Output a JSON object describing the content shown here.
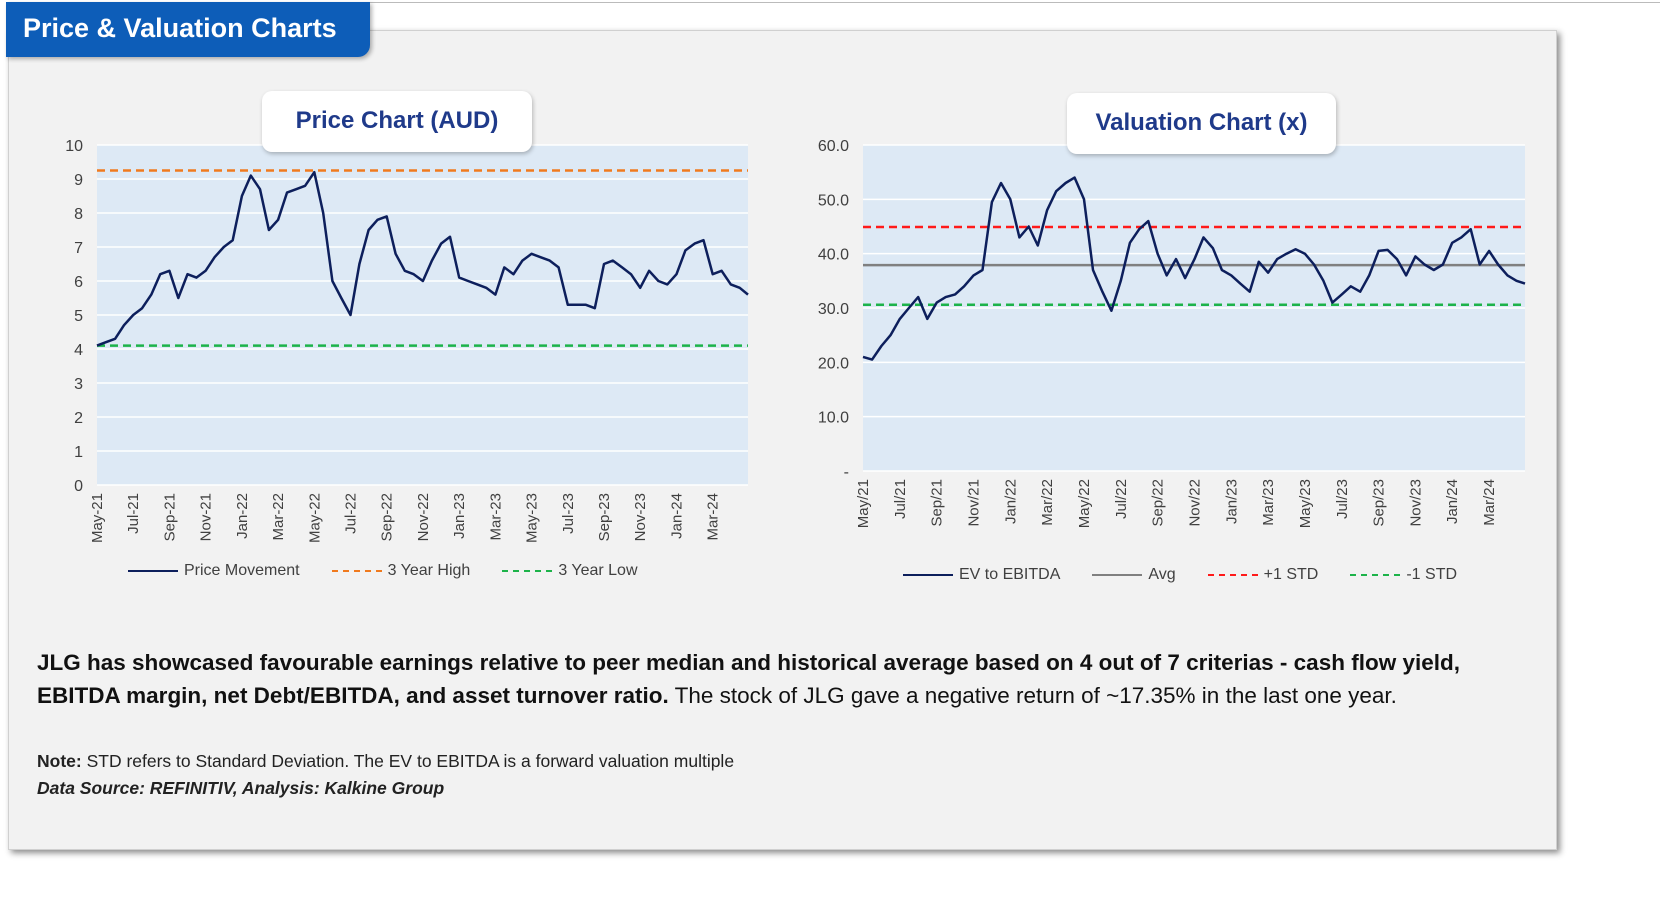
{
  "header": {
    "title": "Price & Valuation Charts"
  },
  "colors": {
    "header_bg": "#0d5db8",
    "plot_bg": "#dde9f5",
    "line": "#0d1f5c",
    "high": "#f07a1e",
    "low": "#1db34a",
    "avg": "#808080",
    "plus_std": "#ff1a1a",
    "minus_std": "#1db34a"
  },
  "chart_data": [
    {
      "type": "line",
      "title": "Price Chart (AUD)",
      "ylim": [
        0,
        10
      ],
      "y_ticks": [
        "0",
        "1",
        "2",
        "3",
        "4",
        "5",
        "6",
        "7",
        "8",
        "9",
        "10"
      ],
      "x_tick_labels": [
        "May-21",
        "Jul-21",
        "Sep-21",
        "Nov-21",
        "Jan-22",
        "Mar-22",
        "May-22",
        "Jul-22",
        "Sep-22",
        "Nov-22",
        "Jan-23",
        "Mar-23",
        "May-23",
        "Jul-23",
        "Sep-23",
        "Nov-23",
        "Jan-24",
        "Mar-24"
      ],
      "xlim": [
        "2021-05-01",
        "2024-04-30"
      ],
      "grid": true,
      "legend_position": "bottom",
      "reference_lines": [
        {
          "name": "3 Year High",
          "value": 9.25,
          "style": "dashed",
          "color": "#f07a1e"
        },
        {
          "name": "3 Year Low",
          "value": 4.1,
          "style": "dashed",
          "color": "#1db34a"
        }
      ],
      "series": [
        {
          "name": "Price Movement",
          "color": "#0d1f5c",
          "x": [
            "2021-05-01",
            "2021-05-16",
            "2021-06-01",
            "2021-06-16",
            "2021-07-01",
            "2021-07-16",
            "2021-08-01",
            "2021-08-16",
            "2021-09-01",
            "2021-09-16",
            "2021-10-01",
            "2021-10-16",
            "2021-11-01",
            "2021-11-16",
            "2021-12-01",
            "2021-12-16",
            "2022-01-01",
            "2022-01-16",
            "2022-02-01",
            "2022-02-16",
            "2022-03-01",
            "2022-03-16",
            "2022-04-01",
            "2022-04-16",
            "2022-05-01",
            "2022-05-16",
            "2022-06-01",
            "2022-06-16",
            "2022-07-01",
            "2022-07-16",
            "2022-08-01",
            "2022-08-16",
            "2022-09-01",
            "2022-09-16",
            "2022-10-01",
            "2022-10-16",
            "2022-11-01",
            "2022-11-16",
            "2022-12-01",
            "2022-12-16",
            "2023-01-01",
            "2023-01-16",
            "2023-02-01",
            "2023-02-16",
            "2023-03-01",
            "2023-03-16",
            "2023-04-01",
            "2023-04-16",
            "2023-05-01",
            "2023-05-16",
            "2023-06-01",
            "2023-06-16",
            "2023-07-01",
            "2023-07-16",
            "2023-08-01",
            "2023-08-16",
            "2023-09-01",
            "2023-09-16",
            "2023-10-01",
            "2023-10-16",
            "2023-11-01",
            "2023-11-16",
            "2023-12-01",
            "2023-12-16",
            "2024-01-01",
            "2024-01-16",
            "2024-02-01",
            "2024-02-16",
            "2024-03-01",
            "2024-03-16",
            "2024-04-01",
            "2024-04-16",
            "2024-04-30"
          ],
          "y": [
            4.1,
            4.2,
            4.3,
            4.7,
            5.0,
            5.2,
            5.6,
            6.2,
            6.3,
            5.5,
            6.2,
            6.1,
            6.3,
            6.7,
            7.0,
            7.2,
            8.5,
            9.1,
            8.7,
            7.5,
            7.8,
            8.6,
            8.7,
            8.8,
            9.2,
            8.0,
            6.0,
            5.5,
            5.0,
            6.5,
            7.5,
            7.8,
            7.9,
            6.8,
            6.3,
            6.2,
            6.0,
            6.6,
            7.1,
            7.3,
            6.1,
            6.0,
            5.9,
            5.8,
            5.6,
            6.4,
            6.2,
            6.6,
            6.8,
            6.7,
            6.6,
            6.4,
            5.3,
            5.3,
            5.3,
            5.2,
            6.5,
            6.6,
            6.4,
            6.2,
            5.8,
            6.3,
            6.0,
            5.9,
            6.2,
            6.9,
            7.1,
            7.2,
            6.2,
            6.3,
            5.9,
            5.8,
            5.6
          ]
        }
      ]
    },
    {
      "type": "line",
      "title": "Valuation Chart (x)",
      "ylim": [
        0,
        60
      ],
      "y_ticks": [
        "-",
        "10.0",
        "20.0",
        "30.0",
        "40.0",
        "50.0",
        "60.0"
      ],
      "x_tick_labels": [
        "May/21",
        "Jul/21",
        "Sep/21",
        "Nov/21",
        "Jan/22",
        "Mar/22",
        "May/22",
        "Jul/22",
        "Sep/22",
        "Nov/22",
        "Jan/23",
        "Mar/23",
        "May/23",
        "Jul/23",
        "Sep/23",
        "Nov/23",
        "Jan/24",
        "Mar/24"
      ],
      "xlim": [
        "2021-05-01",
        "2024-04-30"
      ],
      "grid": true,
      "legend_position": "bottom",
      "reference_lines": [
        {
          "name": "Avg",
          "value": 37.9,
          "style": "solid",
          "color": "#808080"
        },
        {
          "name": "+1 STD",
          "value": 44.9,
          "style": "dashed",
          "color": "#ff1a1a"
        },
        {
          "name": "-1 STD",
          "value": 30.6,
          "style": "dashed",
          "color": "#1db34a"
        }
      ],
      "series": [
        {
          "name": "EV to EBITDA",
          "color": "#0d1f5c",
          "x": [
            "2021-05-01",
            "2021-05-16",
            "2021-06-01",
            "2021-06-16",
            "2021-07-01",
            "2021-07-16",
            "2021-08-01",
            "2021-08-16",
            "2021-09-01",
            "2021-09-16",
            "2021-10-01",
            "2021-10-16",
            "2021-11-01",
            "2021-11-16",
            "2021-12-01",
            "2021-12-16",
            "2022-01-01",
            "2022-01-16",
            "2022-02-01",
            "2022-02-16",
            "2022-03-01",
            "2022-03-16",
            "2022-04-01",
            "2022-04-16",
            "2022-05-01",
            "2022-05-16",
            "2022-06-01",
            "2022-06-16",
            "2022-07-01",
            "2022-07-16",
            "2022-08-01",
            "2022-08-16",
            "2022-09-01",
            "2022-09-16",
            "2022-10-01",
            "2022-10-16",
            "2022-11-01",
            "2022-11-16",
            "2022-12-01",
            "2022-12-16",
            "2023-01-01",
            "2023-01-16",
            "2023-02-01",
            "2023-02-16",
            "2023-03-01",
            "2023-03-16",
            "2023-04-01",
            "2023-04-16",
            "2023-05-01",
            "2023-05-16",
            "2023-06-01",
            "2023-06-16",
            "2023-07-01",
            "2023-07-16",
            "2023-08-01",
            "2023-08-16",
            "2023-09-01",
            "2023-09-16",
            "2023-10-01",
            "2023-10-16",
            "2023-11-01",
            "2023-11-16",
            "2023-12-01",
            "2023-12-16",
            "2024-01-01",
            "2024-01-16",
            "2024-02-01",
            "2024-02-16",
            "2024-03-01",
            "2024-03-16",
            "2024-04-01",
            "2024-04-16",
            "2024-04-30"
          ],
          "y": [
            21,
            20.5,
            23,
            25,
            28,
            30,
            32,
            28,
            31,
            32,
            32.5,
            34,
            36,
            37,
            49.5,
            53,
            50,
            43,
            45,
            41.5,
            48,
            51.5,
            53,
            54,
            50,
            37,
            33,
            29.5,
            35,
            42,
            44.5,
            46,
            40,
            36,
            39,
            35.5,
            39,
            43,
            41,
            37,
            36,
            34.5,
            33,
            38.5,
            36.5,
            39,
            40,
            40.8,
            40,
            38,
            35,
            31,
            32.5,
            34,
            33,
            36,
            40.5,
            40.7,
            39,
            36,
            39.5,
            38,
            37,
            38,
            42,
            43,
            44.5,
            38,
            40.5,
            38,
            36,
            35,
            34.5
          ]
        }
      ]
    }
  ],
  "legend_price": [
    "Price Movement",
    "3 Year High",
    "3 Year Low"
  ],
  "legend_val": [
    "EV to EBITDA",
    "Avg",
    "+1 STD",
    "-1 STD"
  ],
  "text": {
    "summary_bold": "JLG has showcased favourable earnings relative to peer median and historical average based on 4 out of 7 criterias - cash flow yield, EBITDA margin, net Debt/EBITDA, and asset turnover ratio.",
    "summary_rest": " The stock of JLG gave a negative return of ~17.35% in the last one year.",
    "note_label": "Note:",
    "note_text": " STD refers to Standard Deviation. The EV to EBITDA is a forward valuation multiple",
    "source": "Data Source: REFINITIV, Analysis: Kalkine Group"
  }
}
